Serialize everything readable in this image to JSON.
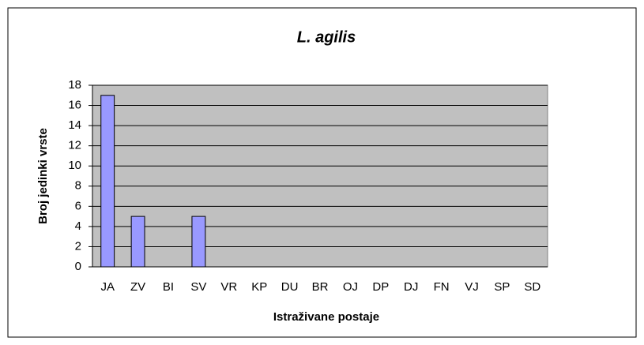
{
  "chart_data": {
    "type": "bar",
    "title": "L. agilis",
    "x_label": "Istraživane postaje",
    "y_label": "Broj jedinki vrste",
    "categories": [
      "JA",
      "ZV",
      "BI",
      "SV",
      "VR",
      "KP",
      "DU",
      "BR",
      "OJ",
      "DP",
      "DJ",
      "FN",
      "VJ",
      "SP",
      "SD"
    ],
    "values": [
      17,
      5,
      0,
      5,
      0,
      0,
      0,
      0,
      0,
      0,
      0,
      0,
      0,
      0,
      0
    ],
    "color": "#9999ff",
    "ylim": [
      0,
      18
    ],
    "yticks": [
      0,
      2,
      4,
      6,
      8,
      10,
      12,
      14,
      16,
      18
    ],
    "grid": true
  }
}
